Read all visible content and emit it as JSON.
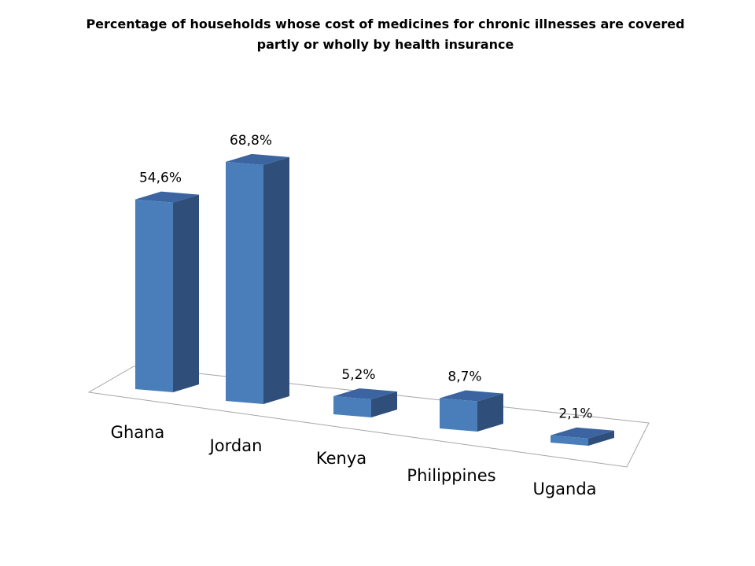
{
  "chart_data": {
    "type": "bar",
    "title_lines": [
      "Percentage of households  whose cost of medicines for chronic illnesses are covered",
      "partly or wholly by health insurance"
    ],
    "categories": [
      "Ghana",
      "Jordan",
      "Kenya",
      "Philippines",
      "Uganda"
    ],
    "values": [
      54.6,
      68.8,
      5.2,
      8.7,
      2.1
    ],
    "value_labels": [
      "54,6%",
      "68,8%",
      "5,2%",
      "8,7%",
      "2,1%"
    ],
    "unit": "%",
    "grid": false,
    "legend": "none",
    "colors": {
      "front": "#4A7EBB",
      "side": "#2F4F7A",
      "top": "#3B64A0",
      "floor_line": "#A6A6A6"
    }
  }
}
